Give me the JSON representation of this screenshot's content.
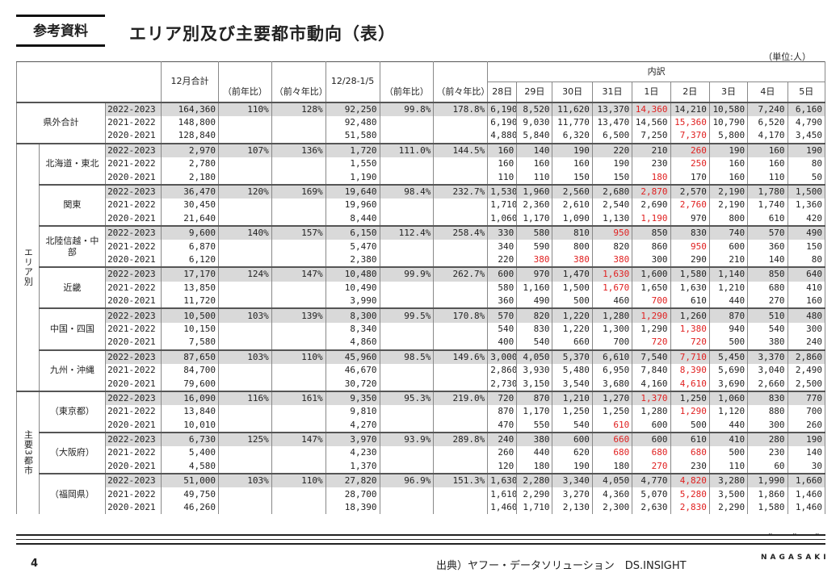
{
  "badge": "参考資料",
  "title": "エリア別及び主要都市動向（表）",
  "unit": "（単位:人）",
  "headers": {
    "dec_total": "12月合計",
    "yoy": "（前年比）",
    "yoy2": "（前々年比）",
    "period": "12/28-1/5",
    "breakdown": "内訳",
    "days": [
      "28日",
      "29日",
      "30日",
      "31日",
      "1日",
      "2日",
      "3日",
      "4日",
      "5日"
    ]
  },
  "blocks": [
    {
      "outer": "県外合計",
      "group": "",
      "rows": [
        {
          "year": "2022-2023",
          "total": "164,360",
          "yoy": "110%",
          "yoy2": "128%",
          "period": "92,250",
          "pyoy": "99.8%",
          "pyoy2": "178.8%",
          "days": [
            "6,190",
            "8,520",
            "11,620",
            "13,370",
            "14,360",
            "14,210",
            "10,580",
            "7,240",
            "6,160"
          ],
          "red": [
            4
          ]
        },
        {
          "year": "2021-2022",
          "total": "148,800",
          "yoy": "",
          "yoy2": "",
          "period": "92,480",
          "pyoy": "",
          "pyoy2": "",
          "days": [
            "6,190",
            "9,030",
            "11,770",
            "13,470",
            "14,560",
            "15,360",
            "10,790",
            "6,520",
            "4,790"
          ],
          "red": [
            5
          ]
        },
        {
          "year": "2020-2021",
          "total": "128,840",
          "yoy": "",
          "yoy2": "",
          "period": "51,580",
          "pyoy": "",
          "pyoy2": "",
          "days": [
            "4,880",
            "5,840",
            "6,320",
            "6,500",
            "7,250",
            "7,370",
            "5,800",
            "4,170",
            "3,450"
          ],
          "red": [
            5
          ]
        }
      ]
    },
    {
      "outer": "エリア別",
      "group": "北海道・東北",
      "rows": [
        {
          "year": "2022-2023",
          "total": "2,970",
          "yoy": "107%",
          "yoy2": "136%",
          "period": "1,720",
          "pyoy": "111.0%",
          "pyoy2": "144.5%",
          "days": [
            "160",
            "140",
            "190",
            "220",
            "210",
            "260",
            "190",
            "160",
            "190"
          ],
          "red": [
            5
          ]
        },
        {
          "year": "2021-2022",
          "total": "2,780",
          "yoy": "",
          "yoy2": "",
          "period": "1,550",
          "pyoy": "",
          "pyoy2": "",
          "days": [
            "160",
            "160",
            "160",
            "190",
            "230",
            "250",
            "160",
            "160",
            "80"
          ],
          "red": [
            5
          ]
        },
        {
          "year": "2020-2021",
          "total": "2,180",
          "yoy": "",
          "yoy2": "",
          "period": "1,190",
          "pyoy": "",
          "pyoy2": "",
          "days": [
            "110",
            "110",
            "150",
            "150",
            "180",
            "170",
            "160",
            "110",
            "50"
          ],
          "red": [
            4
          ]
        }
      ]
    },
    {
      "outer": "",
      "group": "関東",
      "rows": [
        {
          "year": "2022-2023",
          "total": "36,470",
          "yoy": "120%",
          "yoy2": "169%",
          "period": "19,640",
          "pyoy": "98.4%",
          "pyoy2": "232.7%",
          "days": [
            "1,530",
            "1,960",
            "2,560",
            "2,680",
            "2,870",
            "2,570",
            "2,190",
            "1,780",
            "1,500"
          ],
          "red": [
            4
          ]
        },
        {
          "year": "2021-2022",
          "total": "30,450",
          "yoy": "",
          "yoy2": "",
          "period": "19,960",
          "pyoy": "",
          "pyoy2": "",
          "days": [
            "1,710",
            "2,360",
            "2,610",
            "2,540",
            "2,690",
            "2,760",
            "2,190",
            "1,740",
            "1,360"
          ],
          "red": [
            5
          ]
        },
        {
          "year": "2020-2021",
          "total": "21,640",
          "yoy": "",
          "yoy2": "",
          "period": "8,440",
          "pyoy": "",
          "pyoy2": "",
          "days": [
            "1,060",
            "1,170",
            "1,090",
            "1,130",
            "1,190",
            "970",
            "800",
            "610",
            "420"
          ],
          "red": [
            4
          ]
        }
      ]
    },
    {
      "outer": "",
      "group": "北陸信越・中部",
      "rows": [
        {
          "year": "2022-2023",
          "total": "9,600",
          "yoy": "140%",
          "yoy2": "157%",
          "period": "6,150",
          "pyoy": "112.4%",
          "pyoy2": "258.4%",
          "days": [
            "330",
            "580",
            "810",
            "950",
            "850",
            "830",
            "740",
            "570",
            "490"
          ],
          "red": [
            3
          ]
        },
        {
          "year": "2021-2022",
          "total": "6,870",
          "yoy": "",
          "yoy2": "",
          "period": "5,470",
          "pyoy": "",
          "pyoy2": "",
          "days": [
            "340",
            "590",
            "800",
            "820",
            "860",
            "950",
            "600",
            "360",
            "150"
          ],
          "red": [
            5
          ]
        },
        {
          "year": "2020-2021",
          "total": "6,120",
          "yoy": "",
          "yoy2": "",
          "period": "2,380",
          "pyoy": "",
          "pyoy2": "",
          "days": [
            "220",
            "380",
            "380",
            "380",
            "300",
            "290",
            "210",
            "140",
            "80"
          ],
          "red": [
            1,
            2,
            3
          ]
        }
      ]
    },
    {
      "outer": "",
      "group": "近畿",
      "rows": [
        {
          "year": "2022-2023",
          "total": "17,170",
          "yoy": "124%",
          "yoy2": "147%",
          "period": "10,480",
          "pyoy": "99.9%",
          "pyoy2": "262.7%",
          "days": [
            "600",
            "970",
            "1,470",
            "1,630",
            "1,600",
            "1,580",
            "1,140",
            "850",
            "640"
          ],
          "red": [
            3
          ]
        },
        {
          "year": "2021-2022",
          "total": "13,850",
          "yoy": "",
          "yoy2": "",
          "period": "10,490",
          "pyoy": "",
          "pyoy2": "",
          "days": [
            "580",
            "1,160",
            "1,500",
            "1,670",
            "1,650",
            "1,630",
            "1,210",
            "680",
            "410"
          ],
          "red": [
            3
          ]
        },
        {
          "year": "2020-2021",
          "total": "11,720",
          "yoy": "",
          "yoy2": "",
          "period": "3,990",
          "pyoy": "",
          "pyoy2": "",
          "days": [
            "360",
            "490",
            "500",
            "460",
            "700",
            "610",
            "440",
            "270",
            "160"
          ],
          "red": [
            4
          ]
        }
      ]
    },
    {
      "outer": "",
      "group": "中国・四国",
      "rows": [
        {
          "year": "2022-2023",
          "total": "10,500",
          "yoy": "103%",
          "yoy2": "139%",
          "period": "8,300",
          "pyoy": "99.5%",
          "pyoy2": "170.8%",
          "days": [
            "570",
            "820",
            "1,220",
            "1,280",
            "1,290",
            "1,260",
            "870",
            "510",
            "480"
          ],
          "red": [
            4
          ]
        },
        {
          "year": "2021-2022",
          "total": "10,150",
          "yoy": "",
          "yoy2": "",
          "period": "8,340",
          "pyoy": "",
          "pyoy2": "",
          "days": [
            "540",
            "830",
            "1,220",
            "1,300",
            "1,290",
            "1,380",
            "940",
            "540",
            "300"
          ],
          "red": [
            5
          ]
        },
        {
          "year": "2020-2021",
          "total": "7,580",
          "yoy": "",
          "yoy2": "",
          "period": "4,860",
          "pyoy": "",
          "pyoy2": "",
          "days": [
            "400",
            "540",
            "660",
            "700",
            "720",
            "720",
            "500",
            "380",
            "240"
          ],
          "red": [
            4,
            5
          ]
        }
      ]
    },
    {
      "outer": "",
      "group": "九州・沖縄",
      "rows": [
        {
          "year": "2022-2023",
          "total": "87,650",
          "yoy": "103%",
          "yoy2": "110%",
          "period": "45,960",
          "pyoy": "98.5%",
          "pyoy2": "149.6%",
          "days": [
            "3,000",
            "4,050",
            "5,370",
            "6,610",
            "7,540",
            "7,710",
            "5,450",
            "3,370",
            "2,860"
          ],
          "red": [
            5
          ]
        },
        {
          "year": "2021-2022",
          "total": "84,700",
          "yoy": "",
          "yoy2": "",
          "period": "46,670",
          "pyoy": "",
          "pyoy2": "",
          "days": [
            "2,860",
            "3,930",
            "5,480",
            "6,950",
            "7,840",
            "8,390",
            "5,690",
            "3,040",
            "2,490"
          ],
          "red": [
            5
          ]
        },
        {
          "year": "2020-2021",
          "total": "79,600",
          "yoy": "",
          "yoy2": "",
          "period": "30,720",
          "pyoy": "",
          "pyoy2": "",
          "days": [
            "2,730",
            "3,150",
            "3,540",
            "3,680",
            "4,160",
            "4,610",
            "3,690",
            "2,660",
            "2,500"
          ],
          "red": [
            5
          ]
        }
      ]
    },
    {
      "outer": "主要3都市",
      "group": "（東京都）",
      "rows": [
        {
          "year": "2022-2023",
          "total": "16,090",
          "yoy": "116%",
          "yoy2": "161%",
          "period": "9,350",
          "pyoy": "95.3%",
          "pyoy2": "219.0%",
          "days": [
            "720",
            "870",
            "1,210",
            "1,270",
            "1,370",
            "1,250",
            "1,060",
            "830",
            "770"
          ],
          "red": [
            4
          ]
        },
        {
          "year": "2021-2022",
          "total": "13,840",
          "yoy": "",
          "yoy2": "",
          "period": "9,810",
          "pyoy": "",
          "pyoy2": "",
          "days": [
            "870",
            "1,170",
            "1,250",
            "1,250",
            "1,280",
            "1,290",
            "1,120",
            "880",
            "700"
          ],
          "red": [
            5
          ]
        },
        {
          "year": "2020-2021",
          "total": "10,010",
          "yoy": "",
          "yoy2": "",
          "period": "4,270",
          "pyoy": "",
          "pyoy2": "",
          "days": [
            "470",
            "550",
            "540",
            "610",
            "600",
            "500",
            "440",
            "300",
            "260"
          ],
          "red": [
            3
          ]
        }
      ]
    },
    {
      "outer": "",
      "group": "（大阪府）",
      "rows": [
        {
          "year": "2022-2023",
          "total": "6,730",
          "yoy": "125%",
          "yoy2": "147%",
          "period": "3,970",
          "pyoy": "93.9%",
          "pyoy2": "289.8%",
          "days": [
            "240",
            "380",
            "600",
            "660",
            "600",
            "610",
            "410",
            "280",
            "190"
          ],
          "red": [
            3
          ]
        },
        {
          "year": "2021-2022",
          "total": "5,400",
          "yoy": "",
          "yoy2": "",
          "period": "4,230",
          "pyoy": "",
          "pyoy2": "",
          "days": [
            "260",
            "440",
            "620",
            "680",
            "680",
            "680",
            "500",
            "230",
            "140"
          ],
          "red": [
            3,
            4,
            5
          ]
        },
        {
          "year": "2020-2021",
          "total": "4,580",
          "yoy": "",
          "yoy2": "",
          "period": "1,370",
          "pyoy": "",
          "pyoy2": "",
          "days": [
            "120",
            "180",
            "190",
            "180",
            "270",
            "230",
            "110",
            "60",
            "30"
          ],
          "red": [
            4
          ]
        }
      ]
    },
    {
      "outer": "",
      "group": "（福岡県）",
      "rows": [
        {
          "year": "2022-2023",
          "total": "51,000",
          "yoy": "103%",
          "yoy2": "110%",
          "period": "27,820",
          "pyoy": "96.9%",
          "pyoy2": "151.3%",
          "days": [
            "1,630",
            "2,280",
            "3,340",
            "4,050",
            "4,770",
            "4,820",
            "3,280",
            "1,990",
            "1,660"
          ],
          "red": [
            5
          ]
        },
        {
          "year": "2021-2022",
          "total": "49,750",
          "yoy": "",
          "yoy2": "",
          "period": "28,700",
          "pyoy": "",
          "pyoy2": "",
          "days": [
            "1,610",
            "2,290",
            "3,270",
            "4,360",
            "5,070",
            "5,280",
            "3,500",
            "1,860",
            "1,460"
          ],
          "red": [
            5
          ]
        },
        {
          "year": "2020-2021",
          "total": "46,260",
          "yoy": "",
          "yoy2": "",
          "period": "18,390",
          "pyoy": "",
          "pyoy2": "",
          "days": [
            "1,460",
            "1,710",
            "2,130",
            "2,300",
            "2,630",
            "2,830",
            "2,290",
            "1,580",
            "1,460"
          ],
          "red": [
            5
          ]
        }
      ]
    }
  ],
  "footer": {
    "page": "4",
    "source": "出典）ヤフー・データソリューション　DS.INSIGHT",
    "brand": "NAGASAKI"
  }
}
